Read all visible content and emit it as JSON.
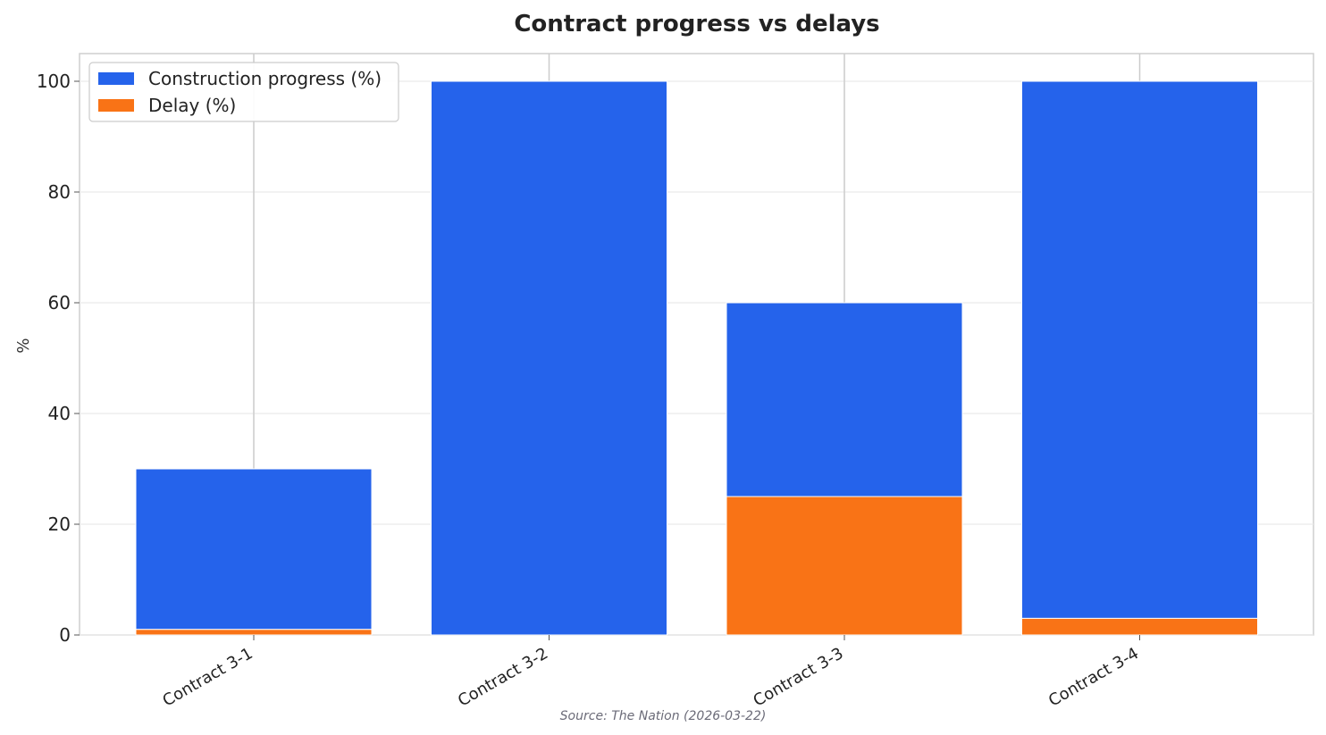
{
  "chart_data": {
    "type": "bar",
    "stacked": true,
    "title": "Contract progress vs delays",
    "xlabel": "",
    "ylabel": "%",
    "ylim": [
      0,
      105
    ],
    "yticks": [
      0,
      20,
      40,
      60,
      80,
      100
    ],
    "categories": [
      "Contract 3-1",
      "Contract 3-2",
      "Contract 3-3",
      "Contract 3-4"
    ],
    "series": [
      {
        "name": "Construction progress (%)",
        "color": "#2563eb",
        "values": [
          30,
          100,
          60,
          100
        ]
      },
      {
        "name": "Delay (%)",
        "color": "#f97316",
        "values": [
          1,
          0,
          25,
          3
        ]
      }
    ],
    "grid": true,
    "legend_position": "top-left",
    "source": "Source: The Nation (2026-03-22)"
  }
}
